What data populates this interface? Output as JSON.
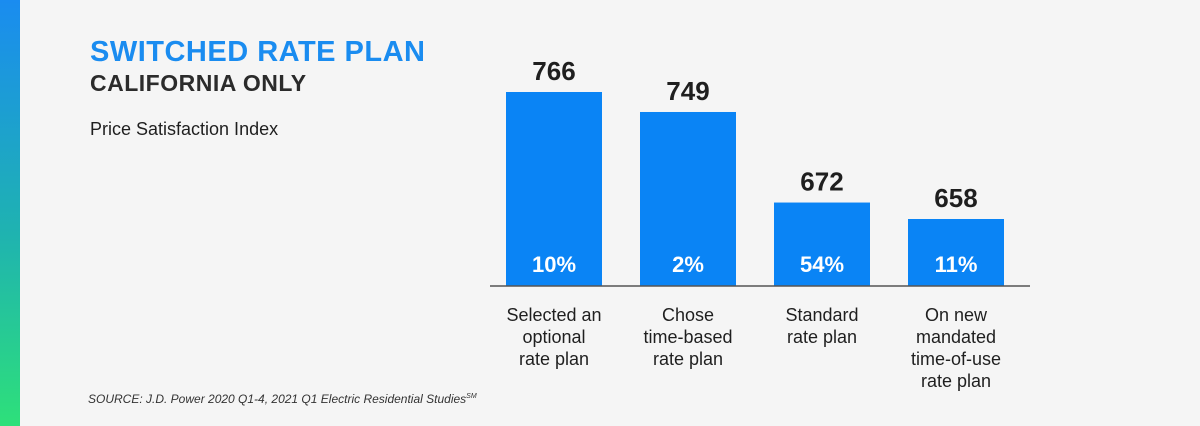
{
  "header": {
    "title": "SWITCHED RATE PLAN",
    "subtitle": "CALIFORNIA ONLY",
    "metric_label": "Price Satisfaction Index"
  },
  "source": {
    "text": "SOURCE:  J.D. Power 2020 Q1-4, 2021 Q1 Electric Residential Studies",
    "superscript": "SM"
  },
  "colors": {
    "bar": "#0a84f5",
    "title": "#1a8cf0",
    "accent_top": "#1a8cf0",
    "accent_bottom": "#2ee07a"
  },
  "chart_data": {
    "type": "bar",
    "title": "",
    "categories": [
      "Selected an optional rate plan",
      "Chose time-based rate plan",
      "Standard rate plan",
      "On new mandated time-of-use rate plan"
    ],
    "category_lines": [
      [
        "Selected an",
        "optional",
        "rate plan"
      ],
      [
        "Chose",
        "time-based",
        "rate plan"
      ],
      [
        "Standard",
        "rate plan"
      ],
      [
        "On new",
        "mandated",
        "time-of-use",
        "rate plan"
      ]
    ],
    "values": [
      766,
      749,
      672,
      658
    ],
    "value_labels": [
      "766",
      "749",
      "672",
      "658"
    ],
    "percent_labels": [
      "10%",
      "2%",
      "54%",
      "11%"
    ],
    "xlabel": "",
    "ylabel": "",
    "grid": false
  }
}
